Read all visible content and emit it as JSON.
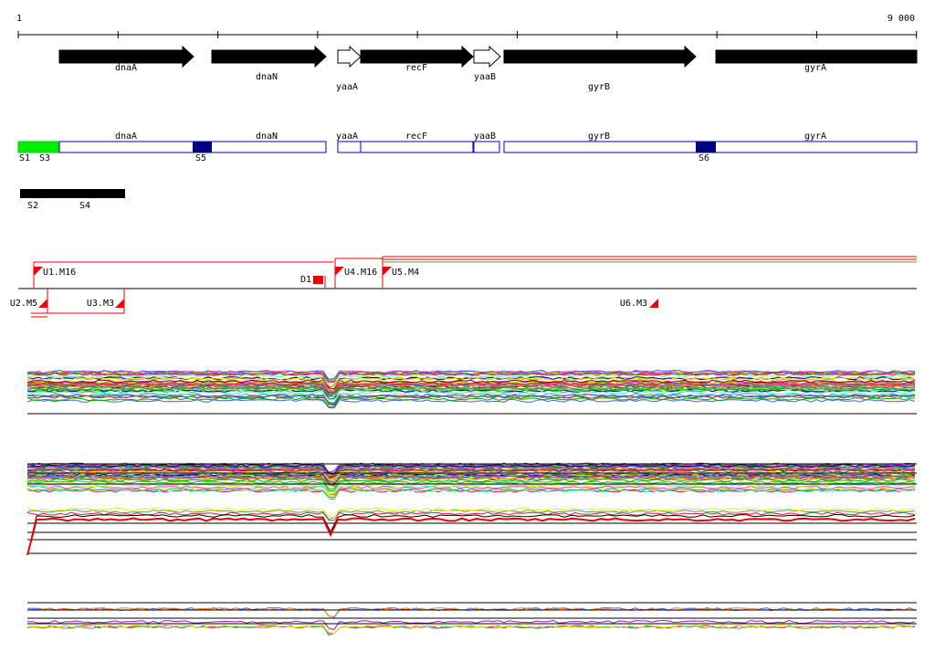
{
  "ruler": {
    "start": "1",
    "end": "9 000"
  },
  "genes": [
    "dnaA",
    "dnaN",
    "yaaA",
    "recF",
    "yaaB",
    "gyrB",
    "gyrA"
  ],
  "segments": [
    "S1",
    "S3",
    "S5",
    "S6",
    "S2",
    "S4"
  ],
  "mutations": [
    "U1.M16",
    "D1",
    "U4.M16",
    "U5.M4",
    "U2.M5",
    "U3.M3",
    "U6.M3"
  ]
}
